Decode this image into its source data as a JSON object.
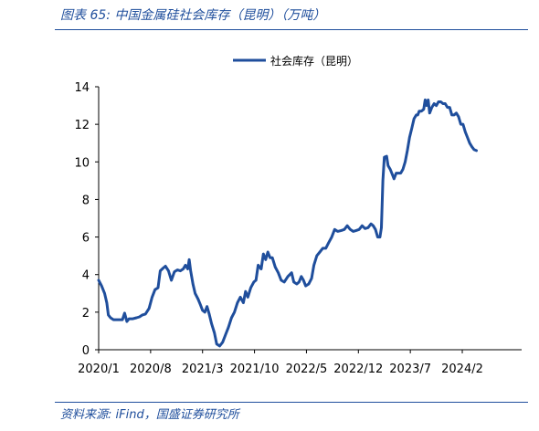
{
  "figure": {
    "title": "图表 65:  中国金属硅社会库存（昆明）（万吨）",
    "source": "资料来源:  iFind，国盛证券研究所"
  },
  "chart_data": {
    "type": "line",
    "title": "",
    "xlabel": "",
    "ylabel": "",
    "ylim": [
      0,
      14
    ],
    "yticks": [
      0,
      2,
      4,
      6,
      8,
      10,
      12,
      14
    ],
    "xlim": [
      0,
      57
    ],
    "xticks": [
      {
        "label": "2020/1",
        "x": 0
      },
      {
        "label": "2020/8",
        "x": 7
      },
      {
        "label": "2021/3",
        "x": 14
      },
      {
        "label": "2021/10",
        "x": 21
      },
      {
        "label": "2022/5",
        "x": 28
      },
      {
        "label": "2022/12",
        "x": 35
      },
      {
        "label": "2023/7",
        "x": 42
      },
      {
        "label": "2024/2",
        "x": 49
      }
    ],
    "legend_position": "top",
    "grid": false,
    "series": [
      {
        "name": "社会库存（昆明）",
        "color": "#1f4e9c",
        "points": [
          [
            0.0,
            3.7
          ],
          [
            0.4,
            3.4
          ],
          [
            0.8,
            3.0
          ],
          [
            1.1,
            2.5
          ],
          [
            1.3,
            1.85
          ],
          [
            1.6,
            1.7
          ],
          [
            2.0,
            1.6
          ],
          [
            2.6,
            1.6
          ],
          [
            3.2,
            1.6
          ],
          [
            3.5,
            1.95
          ],
          [
            3.8,
            1.5
          ],
          [
            4.1,
            1.65
          ],
          [
            4.6,
            1.65
          ],
          [
            5.1,
            1.7
          ],
          [
            5.5,
            1.75
          ],
          [
            5.9,
            1.85
          ],
          [
            6.3,
            1.9
          ],
          [
            6.8,
            2.2
          ],
          [
            7.2,
            2.8
          ],
          [
            7.6,
            3.2
          ],
          [
            8.0,
            3.3
          ],
          [
            8.3,
            4.2
          ],
          [
            8.7,
            4.35
          ],
          [
            9.0,
            4.45
          ],
          [
            9.4,
            4.2
          ],
          [
            9.8,
            3.7
          ],
          [
            10.2,
            4.15
          ],
          [
            10.6,
            4.25
          ],
          [
            11.0,
            4.2
          ],
          [
            11.4,
            4.3
          ],
          [
            11.7,
            4.5
          ],
          [
            12.0,
            4.3
          ],
          [
            12.2,
            4.8
          ],
          [
            12.4,
            4.2
          ],
          [
            12.7,
            3.5
          ],
          [
            13.0,
            3.0
          ],
          [
            13.4,
            2.7
          ],
          [
            13.7,
            2.4
          ],
          [
            14.0,
            2.1
          ],
          [
            14.3,
            2.0
          ],
          [
            14.6,
            2.3
          ],
          [
            14.9,
            1.9
          ],
          [
            15.2,
            1.4
          ],
          [
            15.6,
            0.9
          ],
          [
            15.9,
            0.3
          ],
          [
            16.3,
            0.2
          ],
          [
            16.7,
            0.4
          ],
          [
            17.1,
            0.8
          ],
          [
            17.5,
            1.2
          ],
          [
            17.9,
            1.7
          ],
          [
            18.3,
            2.0
          ],
          [
            18.7,
            2.5
          ],
          [
            19.1,
            2.8
          ],
          [
            19.5,
            2.5
          ],
          [
            19.8,
            3.1
          ],
          [
            20.1,
            2.8
          ],
          [
            20.5,
            3.3
          ],
          [
            20.9,
            3.6
          ],
          [
            21.2,
            3.7
          ],
          [
            21.5,
            4.5
          ],
          [
            21.9,
            4.3
          ],
          [
            22.2,
            5.1
          ],
          [
            22.5,
            4.8
          ],
          [
            22.8,
            5.2
          ],
          [
            23.1,
            4.9
          ],
          [
            23.4,
            4.9
          ],
          [
            23.8,
            4.4
          ],
          [
            24.2,
            4.1
          ],
          [
            24.6,
            3.7
          ],
          [
            25.0,
            3.6
          ],
          [
            25.5,
            3.9
          ],
          [
            26.0,
            4.1
          ],
          [
            26.3,
            3.6
          ],
          [
            26.7,
            3.5
          ],
          [
            27.0,
            3.6
          ],
          [
            27.3,
            3.9
          ],
          [
            27.6,
            3.7
          ],
          [
            27.9,
            3.4
          ],
          [
            28.3,
            3.5
          ],
          [
            28.7,
            3.8
          ],
          [
            29.0,
            4.5
          ],
          [
            29.4,
            5.0
          ],
          [
            29.8,
            5.2
          ],
          [
            30.2,
            5.4
          ],
          [
            30.6,
            5.4
          ],
          [
            31.0,
            5.7
          ],
          [
            31.4,
            6.0
          ],
          [
            31.8,
            6.4
          ],
          [
            32.2,
            6.3
          ],
          [
            32.7,
            6.35
          ],
          [
            33.1,
            6.4
          ],
          [
            33.5,
            6.6
          ],
          [
            33.9,
            6.4
          ],
          [
            34.3,
            6.3
          ],
          [
            34.7,
            6.35
          ],
          [
            35.1,
            6.4
          ],
          [
            35.5,
            6.6
          ],
          [
            35.9,
            6.45
          ],
          [
            36.3,
            6.5
          ],
          [
            36.7,
            6.7
          ],
          [
            37.0,
            6.6
          ],
          [
            37.3,
            6.4
          ],
          [
            37.6,
            6.0
          ],
          [
            37.9,
            6.0
          ],
          [
            38.1,
            6.5
          ],
          [
            38.3,
            9.0
          ],
          [
            38.5,
            10.25
          ],
          [
            38.8,
            10.3
          ],
          [
            39.0,
            9.8
          ],
          [
            39.3,
            9.6
          ],
          [
            39.6,
            9.3
          ],
          [
            39.8,
            9.1
          ],
          [
            40.1,
            9.4
          ],
          [
            40.4,
            9.4
          ],
          [
            40.7,
            9.4
          ],
          [
            41.0,
            9.6
          ],
          [
            41.3,
            10.0
          ],
          [
            41.6,
            10.6
          ],
          [
            41.9,
            11.3
          ],
          [
            42.2,
            11.8
          ],
          [
            42.5,
            12.3
          ],
          [
            42.8,
            12.5
          ],
          [
            43.0,
            12.5
          ],
          [
            43.2,
            12.7
          ],
          [
            43.5,
            12.7
          ],
          [
            43.8,
            12.8
          ],
          [
            44.0,
            13.3
          ],
          [
            44.2,
            13.0
          ],
          [
            44.4,
            13.3
          ],
          [
            44.6,
            12.6
          ],
          [
            44.9,
            12.9
          ],
          [
            45.2,
            13.1
          ],
          [
            45.5,
            13.0
          ],
          [
            45.8,
            13.2
          ],
          [
            46.1,
            13.2
          ],
          [
            46.4,
            13.1
          ],
          [
            46.7,
            13.1
          ],
          [
            47.0,
            12.9
          ],
          [
            47.3,
            12.9
          ],
          [
            47.6,
            12.5
          ],
          [
            47.9,
            12.5
          ],
          [
            48.2,
            12.6
          ],
          [
            48.5,
            12.4
          ],
          [
            48.8,
            12.0
          ],
          [
            49.1,
            12.0
          ],
          [
            49.4,
            11.6
          ],
          [
            49.7,
            11.3
          ],
          [
            50.0,
            11.0
          ],
          [
            50.3,
            10.8
          ],
          [
            50.6,
            10.65
          ],
          [
            50.9,
            10.6
          ]
        ]
      }
    ]
  }
}
